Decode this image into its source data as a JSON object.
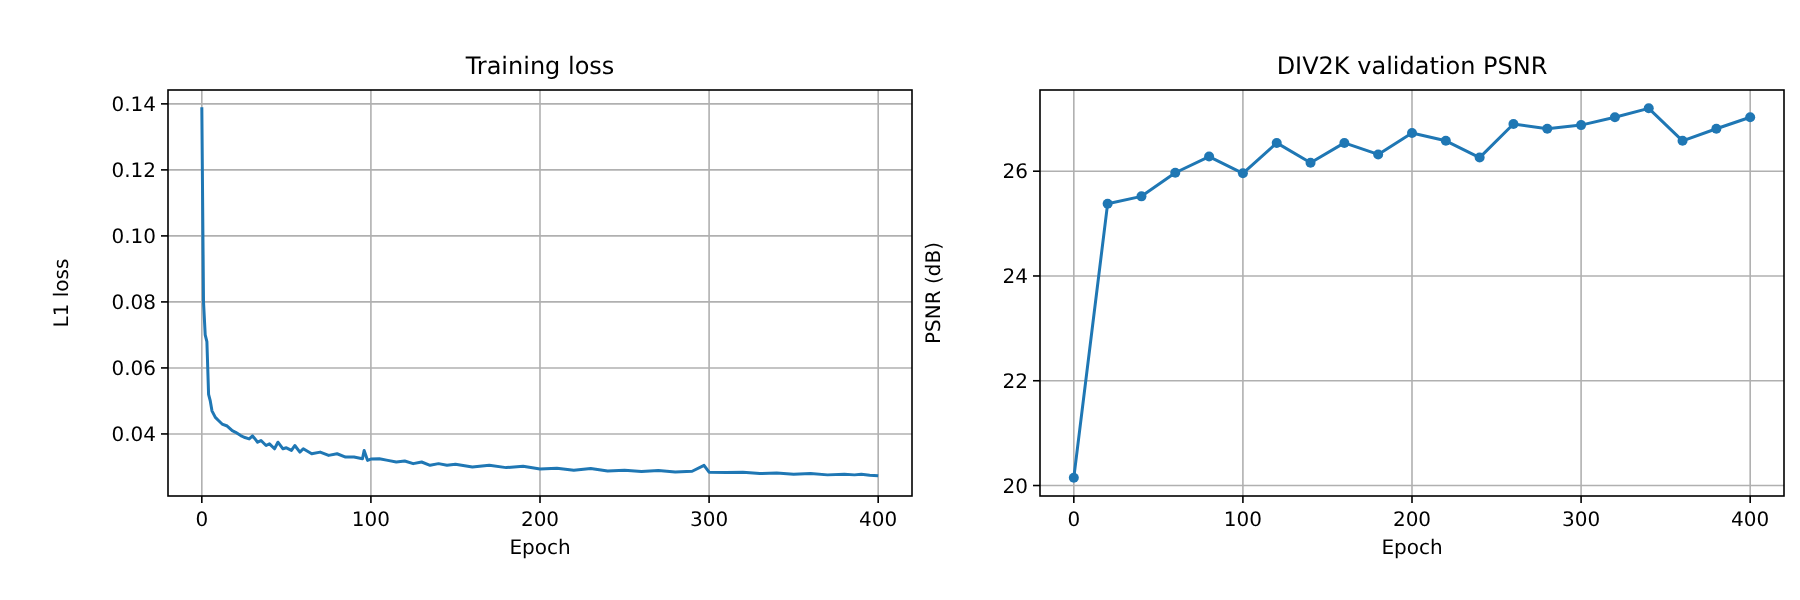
{
  "chart_data": [
    {
      "type": "line",
      "title": "Training loss",
      "xlabel": "Epoch",
      "ylabel": "L1 loss",
      "xlim": [
        -20,
        420
      ],
      "ylim": [
        0.0212,
        0.1442
      ],
      "xticks": [
        0,
        100,
        200,
        300,
        400
      ],
      "yticks": [
        {
          "value": 0.04,
          "label": "0.04"
        },
        {
          "value": 0.06,
          "label": "0.06"
        },
        {
          "value": 0.08,
          "label": "0.08"
        },
        {
          "value": 0.1,
          "label": "0.10"
        },
        {
          "value": 0.12,
          "label": "0.12"
        },
        {
          "value": 0.14,
          "label": "0.14"
        }
      ],
      "grid": true,
      "marker": "none",
      "line_style": "solid",
      "series": [
        {
          "color": "#1f77b4",
          "x": [
            0,
            1,
            2,
            3,
            4,
            5,
            6,
            8,
            10,
            12,
            15,
            18,
            20,
            23,
            25,
            28,
            30,
            33,
            35,
            38,
            40,
            43,
            45,
            48,
            50,
            53,
            55,
            58,
            60,
            65,
            70,
            75,
            80,
            85,
            90,
            95,
            96,
            98,
            100,
            105,
            110,
            115,
            120,
            125,
            130,
            135,
            140,
            145,
            150,
            160,
            170,
            180,
            190,
            200,
            210,
            220,
            230,
            240,
            250,
            260,
            270,
            280,
            290,
            297,
            300,
            310,
            320,
            330,
            340,
            350,
            360,
            370,
            380,
            386,
            390,
            395,
            400
          ],
          "values": [
            0.139,
            0.08,
            0.07,
            0.068,
            0.052,
            0.05,
            0.047,
            0.045,
            0.044,
            0.043,
            0.0424,
            0.041,
            0.0405,
            0.0395,
            0.039,
            0.0385,
            0.0394,
            0.0375,
            0.038,
            0.0365,
            0.037,
            0.0355,
            0.0375,
            0.0355,
            0.0358,
            0.035,
            0.0365,
            0.0345,
            0.0355,
            0.034,
            0.0345,
            0.0335,
            0.034,
            0.033,
            0.033,
            0.0325,
            0.035,
            0.032,
            0.0324,
            0.0325,
            0.032,
            0.0315,
            0.0318,
            0.031,
            0.0315,
            0.0305,
            0.031,
            0.0305,
            0.0308,
            0.03,
            0.0305,
            0.0298,
            0.0302,
            0.0294,
            0.0296,
            0.029,
            0.0295,
            0.0288,
            0.029,
            0.0286,
            0.0289,
            0.0285,
            0.0287,
            0.0305,
            0.0284,
            0.0283,
            0.0284,
            0.028,
            0.0282,
            0.0278,
            0.028,
            0.0276,
            0.0278,
            0.0276,
            0.0278,
            0.0275,
            0.0273
          ]
        }
      ]
    },
    {
      "type": "line",
      "title": "DIV2K validation PSNR",
      "xlabel": "Epoch",
      "ylabel": "PSNR (dB)",
      "xlim": [
        -20,
        420
      ],
      "ylim": [
        19.8,
        27.55
      ],
      "xticks": [
        0,
        100,
        200,
        300,
        400
      ],
      "yticks": [
        20,
        22,
        24,
        26
      ],
      "grid": true,
      "marker": "circle",
      "line_style": "solid",
      "series": [
        {
          "color": "#1f77b4",
          "x": [
            0,
            20,
            40,
            60,
            80,
            100,
            120,
            140,
            160,
            180,
            200,
            220,
            240,
            260,
            280,
            300,
            320,
            340,
            360,
            380,
            400
          ],
          "values": [
            20.15,
            25.38,
            25.52,
            25.97,
            26.28,
            25.96,
            26.54,
            26.16,
            26.54,
            26.32,
            26.73,
            26.58,
            26.26,
            26.9,
            26.81,
            26.88,
            27.03,
            27.2,
            26.58,
            26.81,
            27.03
          ]
        }
      ]
    }
  ]
}
